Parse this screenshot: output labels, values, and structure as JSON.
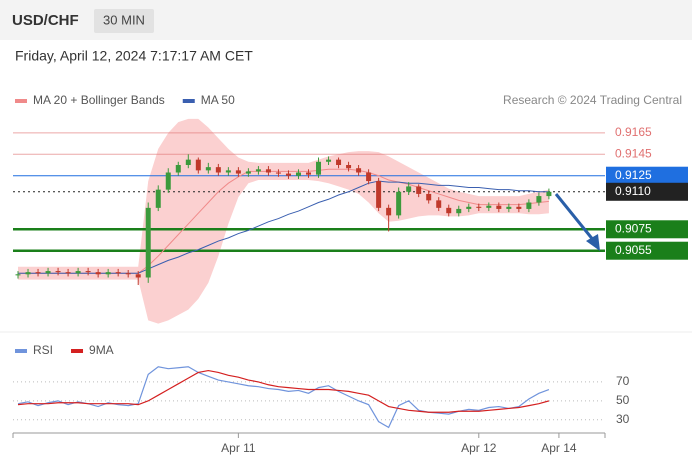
{
  "header": {
    "symbol": "USD/CHF",
    "interval": "30 MIN",
    "timestamp": "Friday, April 12, 2024 7:17:17 AM CET"
  },
  "chart_data": [
    {
      "type": "candlestick",
      "source": "Research © 2024 Trading Central",
      "xlim": [
        -0.5,
        58.6
      ],
      "ylim": [
        0.8981,
        0.9191
      ],
      "up_color": "#3c9a3c",
      "down_color": "#c0392b",
      "open": [
        0.9032,
        0.9033,
        0.9035,
        0.9034,
        0.9036,
        0.9035,
        0.9034,
        0.9036,
        0.9035,
        0.9033,
        0.9035,
        0.9034,
        0.9033,
        0.903,
        0.9095,
        0.9112,
        0.9128,
        0.9135,
        0.914,
        0.913,
        0.9133,
        0.9128,
        0.913,
        0.9127,
        0.9129,
        0.9131,
        0.9128,
        0.9127,
        0.9125,
        0.9128,
        0.9126,
        0.9138,
        0.914,
        0.9135,
        0.9132,
        0.9128,
        0.912,
        0.9095,
        0.9088,
        0.911,
        0.9115,
        0.9108,
        0.9102,
        0.9095,
        0.909,
        0.9094,
        0.9096,
        0.9095,
        0.9097,
        0.9094,
        0.9096,
        0.9094,
        0.91,
        0.9106
      ],
      "high": [
        0.9036,
        0.9038,
        0.9038,
        0.9039,
        0.9039,
        0.9038,
        0.9039,
        0.9039,
        0.9038,
        0.9038,
        0.9038,
        0.9037,
        0.9036,
        0.91,
        0.9116,
        0.9132,
        0.9138,
        0.9145,
        0.9142,
        0.9137,
        0.9136,
        0.9133,
        0.9133,
        0.9132,
        0.9134,
        0.9134,
        0.9131,
        0.913,
        0.9131,
        0.9131,
        0.9142,
        0.9143,
        0.9142,
        0.9138,
        0.9135,
        0.9131,
        0.9123,
        0.9098,
        0.9114,
        0.9119,
        0.9117,
        0.9111,
        0.9105,
        0.9098,
        0.9097,
        0.9099,
        0.9099,
        0.91,
        0.91,
        0.9099,
        0.9099,
        0.9103,
        0.9109,
        0.9113
      ],
      "low": [
        0.9029,
        0.903,
        0.9031,
        0.9031,
        0.9032,
        0.9031,
        0.9031,
        0.9032,
        0.903,
        0.903,
        0.9031,
        0.903,
        0.9023,
        0.9025,
        0.9092,
        0.9109,
        0.9125,
        0.9132,
        0.9127,
        0.9127,
        0.9125,
        0.9125,
        0.9124,
        0.9124,
        0.9126,
        0.9125,
        0.9124,
        0.9122,
        0.9122,
        0.9123,
        0.9123,
        0.9135,
        0.9132,
        0.9129,
        0.9125,
        0.9117,
        0.9092,
        0.9073,
        0.9085,
        0.9107,
        0.9105,
        0.9099,
        0.9092,
        0.9087,
        0.9087,
        0.9091,
        0.9092,
        0.9092,
        0.9091,
        0.9091,
        0.9091,
        0.9091,
        0.9097,
        0.9103
      ],
      "close": [
        0.9033,
        0.9035,
        0.9034,
        0.9036,
        0.9035,
        0.9034,
        0.9036,
        0.9035,
        0.9033,
        0.9035,
        0.9034,
        0.9033,
        0.903,
        0.9095,
        0.9112,
        0.9128,
        0.9135,
        0.914,
        0.913,
        0.9133,
        0.9128,
        0.913,
        0.9127,
        0.9129,
        0.9131,
        0.9128,
        0.9127,
        0.9125,
        0.9128,
        0.9126,
        0.9138,
        0.914,
        0.9135,
        0.9132,
        0.9128,
        0.912,
        0.9095,
        0.9088,
        0.911,
        0.9115,
        0.9108,
        0.9102,
        0.9095,
        0.909,
        0.9094,
        0.9096,
        0.9095,
        0.9097,
        0.9094,
        0.9096,
        0.9094,
        0.91,
        0.9106,
        0.911
      ],
      "series": [
        {
          "name": "MA 20 + Bollinger Bands",
          "color": "#f08a8a",
          "band_color": "#fbd0d0",
          "values": [
            0.9034,
            0.9034,
            0.9034,
            0.9034,
            0.9034,
            0.9034,
            0.9034,
            0.9034,
            0.9034,
            0.9034,
            0.9034,
            0.9034,
            0.9034,
            0.9041,
            0.905,
            0.906,
            0.907,
            0.908,
            0.909,
            0.91,
            0.911,
            0.9118,
            0.9124,
            0.9129,
            0.9129,
            0.9129,
            0.9129,
            0.9129,
            0.9129,
            0.9129,
            0.913,
            0.9131,
            0.9131,
            0.9131,
            0.913,
            0.9128,
            0.9125,
            0.9121,
            0.9119,
            0.9117,
            0.9114,
            0.9111,
            0.9108,
            0.9105,
            0.9102,
            0.91,
            0.9098,
            0.9098,
            0.9098,
            0.9098,
            0.9098,
            0.9099,
            0.91,
            0.9101
          ],
          "upper": [
            0.904,
            0.904,
            0.904,
            0.904,
            0.904,
            0.904,
            0.904,
            0.904,
            0.904,
            0.904,
            0.904,
            0.904,
            0.904,
            0.912,
            0.915,
            0.9165,
            0.9175,
            0.9178,
            0.9178,
            0.917,
            0.916,
            0.915,
            0.9142,
            0.9138,
            0.9137,
            0.9137,
            0.9137,
            0.9137,
            0.9137,
            0.9137,
            0.914,
            0.9143,
            0.9145,
            0.9147,
            0.9148,
            0.9148,
            0.9147,
            0.9143,
            0.9138,
            0.9133,
            0.9128,
            0.9123,
            0.9118,
            0.9113,
            0.911,
            0.9108,
            0.9106,
            0.9106,
            0.9106,
            0.9106,
            0.9106,
            0.9108,
            0.911,
            0.9112
          ],
          "lower": [
            0.9028,
            0.9028,
            0.9028,
            0.9028,
            0.9028,
            0.9028,
            0.9028,
            0.9028,
            0.9028,
            0.9028,
            0.9028,
            0.9028,
            0.9028,
            0.899,
            0.8987,
            0.899,
            0.8995,
            0.9,
            0.901,
            0.9025,
            0.905,
            0.908,
            0.9105,
            0.9118,
            0.9121,
            0.9121,
            0.9121,
            0.9121,
            0.9121,
            0.9121,
            0.912,
            0.9118,
            0.9115,
            0.9112,
            0.9108,
            0.91,
            0.909,
            0.9082,
            0.9083,
            0.9085,
            0.9087,
            0.9088,
            0.9088,
            0.9087,
            0.9087,
            0.9088,
            0.909,
            0.909,
            0.909,
            0.909,
            0.909,
            0.9089,
            0.9089,
            0.909
          ]
        },
        {
          "name": "MA 50",
          "color": "#3a5fb0",
          "values": [
            0.9034,
            0.9034,
            0.9034,
            0.9034,
            0.9034,
            0.9034,
            0.9034,
            0.9034,
            0.9034,
            0.9034,
            0.9034,
            0.9034,
            0.9034,
            0.9038,
            0.9042,
            0.9046,
            0.9049,
            0.9053,
            0.9056,
            0.906,
            0.9064,
            0.9067,
            0.9071,
            0.9074,
            0.9078,
            0.9082,
            0.9085,
            0.9089,
            0.9092,
            0.9096,
            0.91,
            0.9103,
            0.9107,
            0.911,
            0.9114,
            0.9118,
            0.912,
            0.9119,
            0.9119,
            0.9118,
            0.9118,
            0.9117,
            0.9116,
            0.9116,
            0.9115,
            0.9114,
            0.9114,
            0.9113,
            0.9112,
            0.9112,
            0.9111,
            0.9111,
            0.911,
            0.911
          ]
        }
      ],
      "levels": [
        {
          "value": 0.9165,
          "label": "0.9165",
          "color": "#e07070",
          "style": "text"
        },
        {
          "value": 0.9145,
          "label": "0.9145",
          "color": "#e07070",
          "style": "text"
        },
        {
          "value": 0.9125,
          "label": "0.9125",
          "color": "#1f6fe0",
          "style": "box"
        },
        {
          "value": 0.911,
          "label": "0.9110",
          "color": "#222222",
          "style": "dotted"
        },
        {
          "value": 0.9075,
          "label": "0.9075",
          "color": "#1a7f1a",
          "style": "thick"
        },
        {
          "value": 0.9055,
          "label": "0.9055",
          "color": "#1a7f1a",
          "style": "thick"
        }
      ]
    },
    {
      "type": "line",
      "xlim": [
        -0.5,
        58.6
      ],
      "xticks": [
        {
          "value": 22,
          "label": "Apr 11"
        },
        {
          "value": 46,
          "label": "Apr 12"
        },
        {
          "value": 54,
          "label": "Apr 14"
        }
      ],
      "ylim": [
        15,
        90
      ],
      "yticks": [
        70,
        50,
        30
      ],
      "series": [
        {
          "name": "RSI",
          "color": "#7094dc",
          "values": [
            47,
            49,
            45,
            48,
            50,
            46,
            49,
            47,
            44,
            48,
            46,
            45,
            47,
            78,
            86,
            84,
            85,
            86,
            80,
            76,
            72,
            70,
            68,
            66,
            65,
            63,
            62,
            60,
            61,
            58,
            64,
            66,
            60,
            55,
            50,
            46,
            28,
            22,
            45,
            50,
            40,
            38,
            37,
            36,
            39,
            41,
            40,
            43,
            44,
            42,
            44,
            52,
            58,
            62
          ]
        },
        {
          "name": "9MA",
          "color": "#d42020",
          "values": [
            46,
            47,
            47,
            47,
            48,
            48,
            48,
            47,
            47,
            47,
            47,
            47,
            46,
            50,
            56,
            62,
            68,
            74,
            80,
            82,
            80,
            77,
            75,
            72,
            70,
            67,
            65,
            64,
            63,
            62,
            62,
            62,
            61,
            60,
            58,
            56,
            50,
            44,
            42,
            40,
            39,
            38,
            38,
            38,
            39,
            39,
            39,
            40,
            41,
            42,
            43,
            45,
            47,
            50
          ]
        }
      ]
    }
  ]
}
